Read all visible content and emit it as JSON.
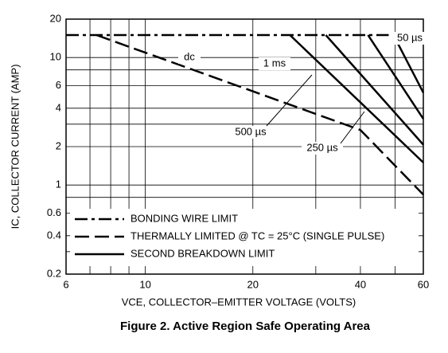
{
  "chart_data": {
    "type": "line",
    "title": "Figure 2. Active Region Safe Operating Area",
    "x_label": "VCE, COLLECTOR–EMITTER VOLTAGE (VOLTS)",
    "y_label": "IC, COLLECTOR CURRENT (AMP)",
    "log_x": true,
    "log_y": true,
    "grid": true,
    "legend": "lower left",
    "xlim": [
      6,
      60
    ],
    "ylim": [
      0.2,
      20
    ],
    "xticks": [
      6,
      10,
      20,
      40,
      60
    ],
    "xminor": [
      7,
      8,
      9,
      30,
      50
    ],
    "yticks": [
      0.2,
      0.4,
      0.6,
      1,
      2,
      4,
      6,
      10,
      20
    ],
    "yminor": [
      0.3,
      0.8,
      3,
      8
    ],
    "series": [
      {
        "name": "BONDING WIRE LIMIT",
        "color": "#000000",
        "style": "dash-dot",
        "x": [
          6,
          48
        ],
        "values": [
          15,
          15
        ]
      },
      {
        "name": "THERMALLY LIMITED @ TC = 25°C (SINGLE PULSE)",
        "color": "#000000",
        "style": "dashed",
        "x": [
          7.3,
          40,
          60
        ],
        "values": [
          15,
          2.7,
          0.84
        ]
      },
      {
        "name": "SECOND BREAKDOWN LIMIT",
        "color": "#000000",
        "style": "solid",
        "x": [
          25.4,
          60,
          60,
          32,
          60,
          60,
          42,
          60,
          60,
          49.5,
          60
        ],
        "values": [
          15,
          1.5,
          null,
          15,
          2.07,
          null,
          15,
          3.3,
          null,
          15,
          5.3
        ]
      }
    ],
    "annotations": [
      "dc",
      "1 ms",
      "500 µs",
      "250 µs",
      "50 µs"
    ]
  }
}
